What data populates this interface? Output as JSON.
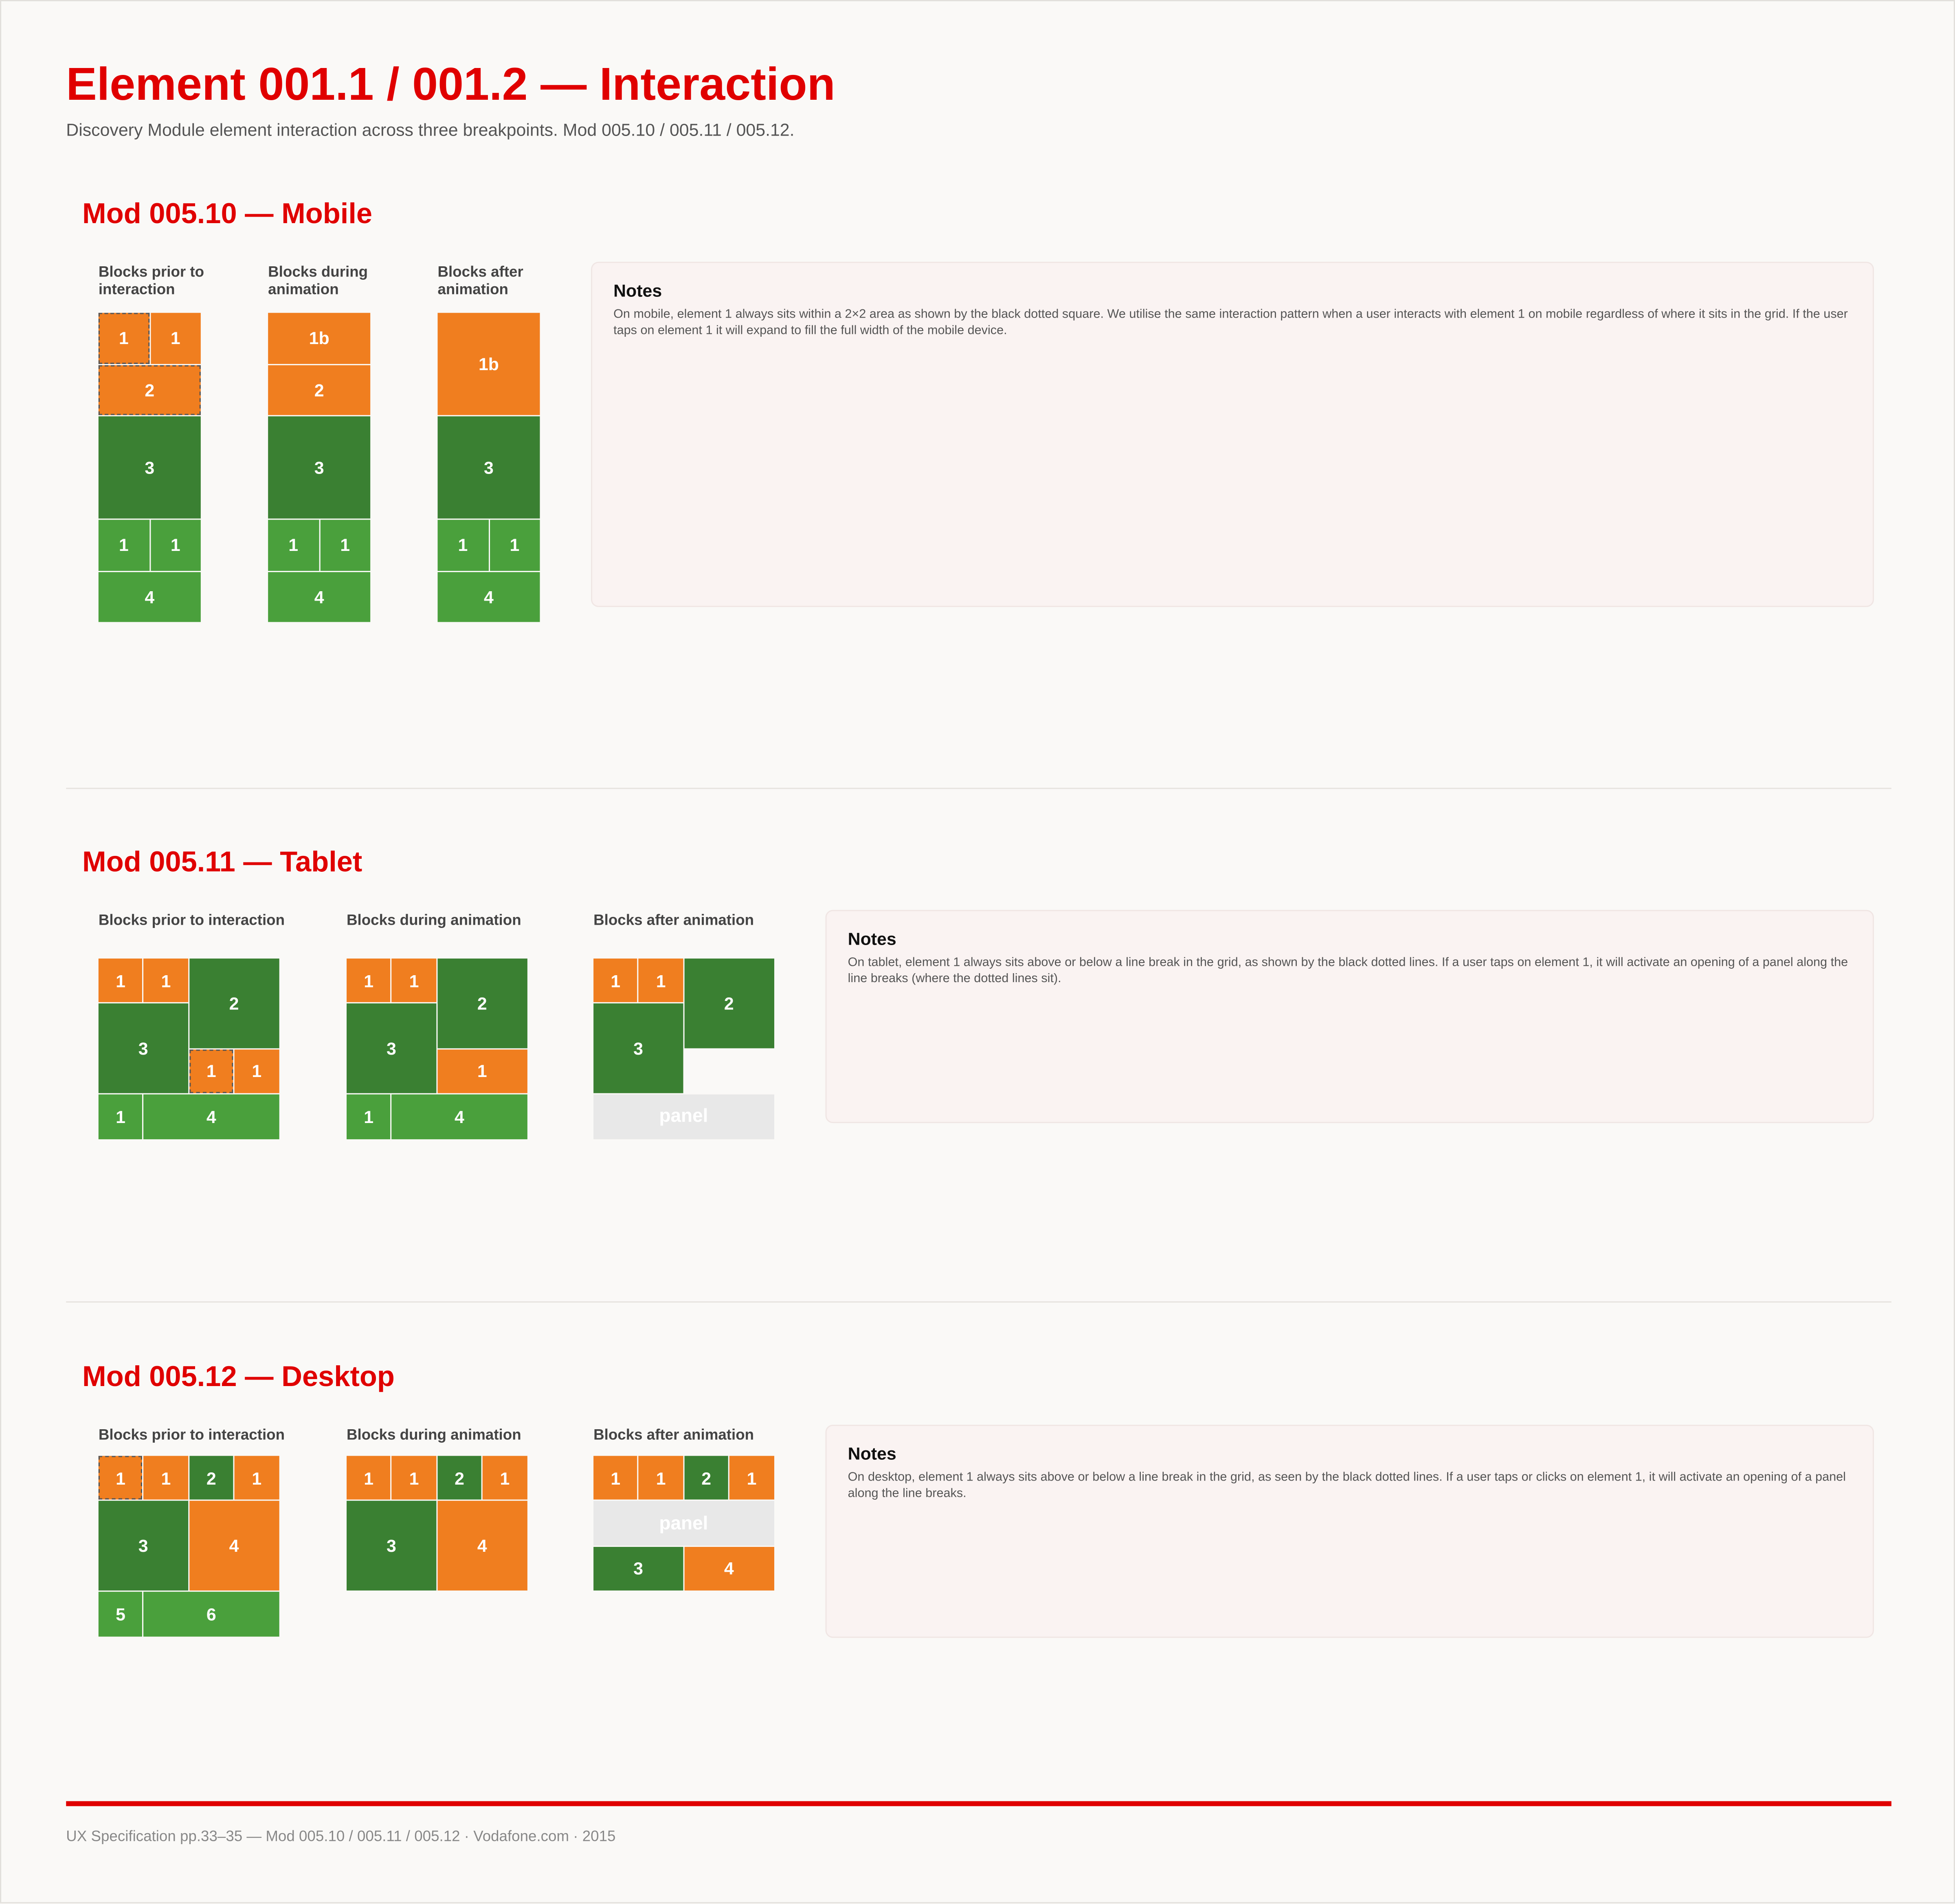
{
  "header": {
    "title": "Element 001.1 / 001.2 — Interaction",
    "subtitle": "Discovery Module element interaction across three breakpoints. Mod 005.10 / 005.11 / 005.12."
  },
  "sections": [
    {
      "title": "Mod 005.10 — Mobile",
      "diagrams": [
        {
          "label": "Blocks prior to interaction",
          "blocks": [
            "1",
            "1",
            "2",
            "3",
            "1",
            "1",
            "4"
          ]
        },
        {
          "label": "Blocks during animation",
          "blocks": [
            "1b",
            "2",
            "3",
            "1",
            "1",
            "4"
          ]
        },
        {
          "label": "Blocks after animation",
          "blocks": [
            "1b",
            "3",
            "1",
            "1",
            "4"
          ]
        }
      ],
      "notes": {
        "title": "Notes",
        "text": "On mobile, element 1 always sits within a 2×2 area as shown by the black dotted square. We utilise the same interaction pattern when a user interacts with element 1 on mobile regardless of where it sits in the grid. If the user taps on element 1 it will expand to fill the full width of the mobile device."
      }
    },
    {
      "title": "Mod 005.11 — Tablet",
      "diagrams": [
        {
          "label": "Blocks prior to interaction",
          "blocks": [
            "1",
            "1",
            "2",
            "3",
            "1",
            "1",
            "1",
            "4"
          ]
        },
        {
          "label": "Blocks during animation",
          "blocks": [
            "1",
            "1",
            "2",
            "3",
            "1",
            "1",
            "4"
          ]
        },
        {
          "label": "Blocks after animation",
          "blocks": [
            "1",
            "1",
            "2",
            "3",
            "panel"
          ]
        }
      ],
      "notes": {
        "title": "Notes",
        "text": "On tablet, element 1 always sits above or below a line break in the grid, as shown by the black dotted lines. If a user taps on element 1, it will activate an opening of a panel along the line breaks (where the dotted lines sit)."
      }
    },
    {
      "title": "Mod 005.12 — Desktop",
      "diagrams": [
        {
          "label": "Blocks prior to interaction",
          "blocks": [
            "1",
            "1",
            "2",
            "1",
            "3",
            "4",
            "5",
            "6"
          ]
        },
        {
          "label": "Blocks during animation",
          "blocks": [
            "1",
            "1",
            "2",
            "1",
            "3",
            "4"
          ]
        },
        {
          "label": "Blocks after animation",
          "blocks": [
            "1",
            "1",
            "2",
            "1",
            "panel",
            "3",
            "4"
          ]
        }
      ],
      "notes": {
        "title": "Notes",
        "text": "On desktop, element 1 always sits above or below a line break in the grid, as seen by the black dotted lines. If a user taps or clicks on element 1, it will activate an opening of a panel along the line breaks."
      }
    }
  ],
  "footer": {
    "text": "UX Specification pp.33–35 — Mod 005.10 / 005.11 / 005.12 · Vodafone.com · 2015"
  }
}
